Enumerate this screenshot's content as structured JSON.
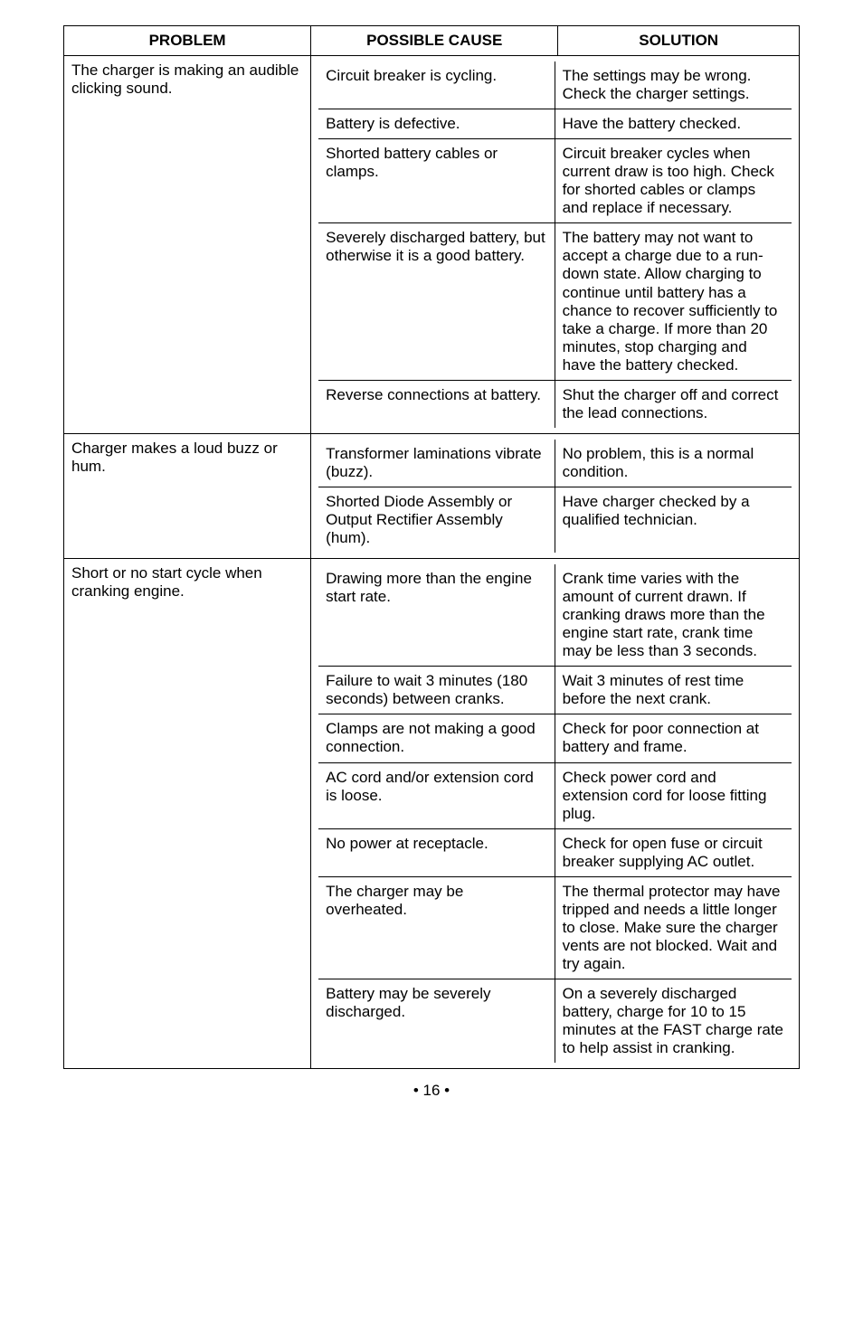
{
  "page_number": "• 16 •",
  "headers": {
    "problem": "PROBLEM",
    "cause": "POSSIBLE CAUSE",
    "solution": "SOLUTION"
  },
  "groups": [
    {
      "problem": "The charger is making an audible clicking sound.",
      "rows": [
        {
          "cause": "Circuit breaker is cycling.",
          "solution": "The settings may be wrong. Check the charger settings."
        },
        {
          "cause": "Battery is defective.",
          "solution": "Have the battery checked."
        },
        {
          "cause": "Shorted battery cables or clamps.",
          "solution": "Circuit breaker cycles when current draw is too high. Check for shorted cables or clamps and replace if necessary."
        },
        {
          "cause": "Severely discharged battery, but otherwise it is a good battery.",
          "solution": "The battery may not want to accept a charge due to a run-down state. Allow charging to continue until battery has a chance to recover sufficiently to take a charge. If more than 20 minutes, stop charging and have the battery checked."
        },
        {
          "cause": "Reverse connections at battery.",
          "solution": "Shut the charger off and correct the lead connections."
        }
      ]
    },
    {
      "problem": "Charger makes a loud buzz or hum.",
      "rows": [
        {
          "cause": "Transformer laminations vibrate (buzz).",
          "solution": "No problem, this is a normal condition."
        },
        {
          "cause": "Shorted Diode Assembly or Output Rectifier Assembly (hum).",
          "solution": "Have charger checked by a qualified technician."
        }
      ]
    },
    {
      "problem": "Short or no start cycle when cranking engine.",
      "rows": [
        {
          "cause": "Drawing more than the engine start rate.",
          "solution": "Crank time varies with the amount of current drawn. If cranking draws more than the engine start rate, crank time may be less than 3 seconds."
        },
        {
          "cause": "Failure to wait 3 minutes (180 seconds) between cranks.",
          "solution": "Wait 3 minutes of rest time before the next crank."
        },
        {
          "cause": "Clamps are not making a good connection.",
          "solution": "Check for poor connection at battery and frame."
        },
        {
          "cause": "AC cord and/or extension cord is loose.",
          "solution": "Check power cord and extension cord for loose fitting plug."
        },
        {
          "cause": "No power at receptacle.",
          "solution": "Check for open fuse or circuit breaker supplying AC outlet."
        },
        {
          "cause": "The charger may be overheated.",
          "solution": "The thermal protector may have tripped and needs a little longer to close. Make sure the charger vents are not blocked. Wait and try again."
        },
        {
          "cause": "Battery may be severely discharged.",
          "solution": "On a severely discharged battery, charge for 10 to 15 minutes at the FAST charge rate to help assist in cranking."
        }
      ]
    }
  ]
}
